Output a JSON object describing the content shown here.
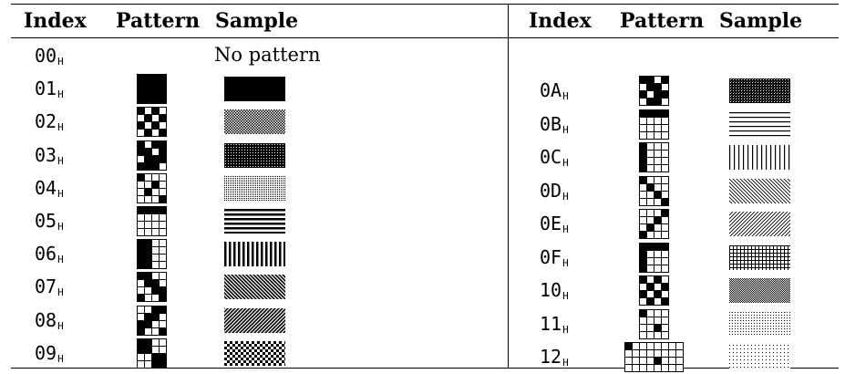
{
  "headers": {
    "left": {
      "index": "Index",
      "pattern": "Pattern",
      "sample": "Sample"
    },
    "right": {
      "index": "Index",
      "pattern": "Pattern",
      "sample": "Sample"
    }
  },
  "subscript": "H",
  "left_rows": [
    {
      "index": "00",
      "sample_text": "No pattern",
      "pattern": null,
      "sample": "none"
    },
    {
      "index": "01",
      "pattern": [
        "1111",
        "1111",
        "1111",
        "1111"
      ],
      "sample": "solid"
    },
    {
      "index": "02",
      "pattern": [
        "1010",
        "0101",
        "1010",
        "0101"
      ],
      "sample": "checker-fine"
    },
    {
      "index": "03",
      "pattern": [
        "1011",
        "1101",
        "0111",
        "1110"
      ],
      "sample": "dense-dots"
    },
    {
      "index": "04",
      "pattern": [
        "1000",
        "0010",
        "0100",
        "0001"
      ],
      "sample": "sparse-dots"
    },
    {
      "index": "05",
      "pattern": [
        "1111",
        "0000",
        "0000",
        "0000"
      ],
      "sample": "horizontal-lines"
    },
    {
      "index": "06",
      "pattern": [
        "1100",
        "1100",
        "1100",
        "1100"
      ],
      "sample": "vertical-lines"
    },
    {
      "index": "07",
      "pattern": [
        "1100",
        "0110",
        "0011",
        "1001"
      ],
      "sample": "diagonal-down"
    },
    {
      "index": "08",
      "pattern": [
        "0011",
        "0110",
        "1100",
        "1001"
      ],
      "sample": "diagonal-up"
    },
    {
      "index": "09",
      "pattern": [
        "1100",
        "1100",
        "0011",
        "0011"
      ],
      "sample": "checker-coarse"
    }
  ],
  "right_rows": [
    {
      "index": "0A",
      "pattern": [
        "1101",
        "0110",
        "1011",
        "0110"
      ],
      "sample": "dense-mesh"
    },
    {
      "index": "0B",
      "pattern": [
        "1111",
        "0000",
        "0000",
        "0000"
      ],
      "sample": "thin-horizontal"
    },
    {
      "index": "0C",
      "pattern": [
        "1000",
        "1000",
        "1000",
        "1000"
      ],
      "sample": "thin-vertical"
    },
    {
      "index": "0D",
      "pattern": [
        "1000",
        "0100",
        "0010",
        "0001"
      ],
      "sample": "thin-diagonal-down"
    },
    {
      "index": "0E",
      "pattern": [
        "0001",
        "0010",
        "0100",
        "1000"
      ],
      "sample": "thin-diagonal-up"
    },
    {
      "index": "0F",
      "pattern": [
        "1111",
        "1000",
        "1000",
        "1000"
      ],
      "sample": "grid"
    },
    {
      "index": "10",
      "pattern": [
        "1010",
        "0101",
        "1010",
        "0101"
      ],
      "sample": "fine-checker"
    },
    {
      "index": "11",
      "pattern": [
        "1000",
        "0000",
        "0010",
        "0000"
      ],
      "sample": "fine-dots"
    },
    {
      "index": "12",
      "pattern": [
        "10000000",
        "00000000",
        "00001000",
        "00000000"
      ],
      "sample": "very-sparse-dots"
    }
  ]
}
